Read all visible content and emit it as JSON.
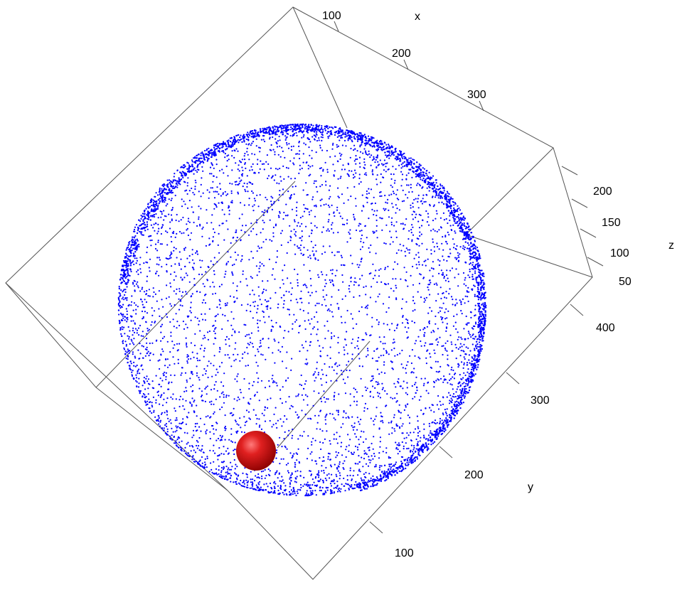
{
  "chart_data": {
    "type": "scatter",
    "title": "",
    "xlabel": "x",
    "ylabel": "y",
    "zlabel": "z",
    "x_ticks": [
      "100",
      "200",
      "300"
    ],
    "y_ticks": [
      "100",
      "200",
      "300",
      "400"
    ],
    "z_ticks": [
      "50",
      "100",
      "150",
      "200"
    ],
    "series": [
      {
        "kind": "point-cloud",
        "color": "#0000ff",
        "shape": "ellipsoid",
        "center": [
          240,
          250,
          130
        ],
        "radii": [
          150,
          150,
          90
        ]
      },
      {
        "kind": "sphere",
        "color": "#e01010",
        "center": [
          100,
          80,
          60
        ]
      }
    ],
    "colors": {
      "points": "#0000ff",
      "sphere": "#e01010",
      "box": "#555555"
    },
    "grid": false
  }
}
